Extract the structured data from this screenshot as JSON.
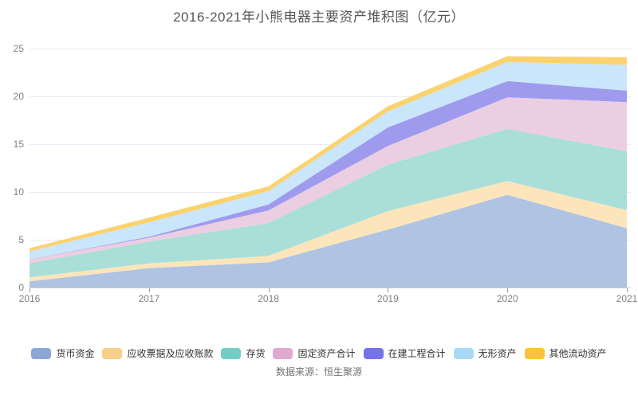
{
  "title": "2016-2021年小熊电器主要资产堆积图（亿元）",
  "source": "数据来源：恒生聚源",
  "chart_data": {
    "type": "area",
    "stacked": true,
    "title": "2016-2021年小熊电器主要资产堆积图（亿元）",
    "xlabel": "",
    "ylabel": "",
    "xlabels": [
      "2016",
      "2017",
      "2018",
      "2019",
      "2020",
      "2021"
    ],
    "ylim": [
      0,
      25
    ],
    "yticks": [
      0,
      5,
      10,
      15,
      20,
      25
    ],
    "grid": true,
    "legend_position": "bottom",
    "axis_color": "#cccccc",
    "tick_color": "#999999",
    "grid_color": "#e8ebf5",
    "tick_label_color": "#808080",
    "series": [
      {
        "name": "货币资金",
        "color": "#8CA7D4",
        "fill": "#AFC4E3",
        "values": [
          0.65,
          2.03,
          2.64,
          6.06,
          9.7,
          6.2
        ]
      },
      {
        "name": "应收票据及应收账款",
        "color": "#F8CE8B",
        "fill": "#FCE5BB",
        "values": [
          0.41,
          0.5,
          0.67,
          1.94,
          1.44,
          1.9
        ]
      },
      {
        "name": "存货",
        "color": "#72CEC5",
        "fill": "#A9DFD8",
        "values": [
          1.47,
          2.28,
          3.44,
          4.86,
          5.46,
          6.15
        ]
      },
      {
        "name": "固定资产合计",
        "color": "#DFA9D0",
        "fill": "#ECCEE3",
        "values": [
          0.41,
          0.4,
          1.31,
          1.95,
          3.3,
          5.15
        ]
      },
      {
        "name": "在建工程合计",
        "color": "#7672EA",
        "fill": "#9E9BEF",
        "values": [
          0.02,
          0.1,
          0.63,
          1.94,
          1.7,
          1.2
        ]
      },
      {
        "name": "无形资产",
        "color": "#A8DAF8",
        "fill": "#C9E6FA",
        "values": [
          0.82,
          1.5,
          1.39,
          1.67,
          2.0,
          2.7
        ]
      },
      {
        "name": "其他流动资产",
        "color": "#FBC337",
        "fill": "#FBD36E",
        "values": [
          0.33,
          0.5,
          0.5,
          0.55,
          0.6,
          0.8
        ]
      }
    ]
  }
}
